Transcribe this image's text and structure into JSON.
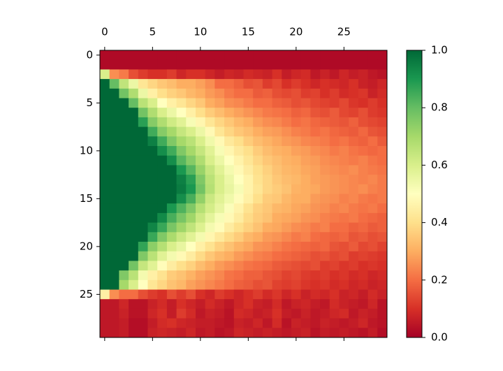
{
  "chart_data": {
    "type": "heatmap",
    "colormap": "RdYlGn",
    "xlim": [
      -0.5,
      29.5
    ],
    "ylim": [
      29.5,
      -0.5
    ],
    "xticks": [
      0,
      5,
      10,
      15,
      20,
      25
    ],
    "yticks": [
      0,
      5,
      10,
      15,
      20,
      25
    ],
    "clim": [
      0,
      1
    ],
    "cticks": [
      {
        "value": 0,
        "label": "0.0"
      },
      0.2,
      0.4,
      0.6,
      0.8,
      {
        "value": 1,
        "label": "1.0"
      }
    ],
    "z": [
      [
        0.02,
        0.02,
        0.02,
        0.02,
        0.02,
        0.02,
        0.02,
        0.02,
        0.02,
        0.02,
        0.02,
        0.02,
        0.02,
        0.02,
        0.02,
        0.02,
        0.02,
        0.02,
        0.02,
        0.02,
        0.02,
        0.02,
        0.02,
        0.02,
        0.02,
        0.02,
        0.02,
        0.02,
        0.02,
        0.02
      ],
      [
        0.02,
        0.02,
        0.02,
        0.02,
        0.02,
        0.02,
        0.02,
        0.02,
        0.02,
        0.02,
        0.02,
        0.02,
        0.02,
        0.02,
        0.02,
        0.02,
        0.02,
        0.02,
        0.02,
        0.02,
        0.02,
        0.02,
        0.02,
        0.02,
        0.02,
        0.02,
        0.02,
        0.02,
        0.02,
        0.02
      ],
      [
        0.6,
        0.25,
        0.22,
        0.15,
        0.12,
        0.1,
        0.1,
        0.12,
        0.08,
        0.1,
        0.1,
        0.08,
        0.06,
        0.08,
        0.07,
        0.09,
        0.08,
        0.07,
        0.1,
        0.06,
        0.08,
        0.09,
        0.05,
        0.07,
        0.05,
        0.08,
        0.06,
        0.07,
        0.05,
        0.04
      ],
      [
        1,
        0.8,
        0.65,
        0.55,
        0.42,
        0.38,
        0.35,
        0.33,
        0.3,
        0.3,
        0.28,
        0.25,
        0.2,
        0.2,
        0.18,
        0.15,
        0.16,
        0.12,
        0.14,
        0.1,
        0.12,
        0.1,
        0.08,
        0.1,
        0.09,
        0.08,
        0.1,
        0.07,
        0.06,
        0.08
      ],
      [
        1,
        1,
        0.78,
        0.68,
        0.55,
        0.45,
        0.4,
        0.37,
        0.35,
        0.32,
        0.3,
        0.27,
        0.25,
        0.22,
        0.2,
        0.2,
        0.17,
        0.18,
        0.15,
        0.14,
        0.15,
        0.12,
        0.13,
        0.1,
        0.12,
        0.09,
        0.1,
        0.11,
        0.07,
        0.09
      ],
      [
        1,
        1,
        1,
        0.8,
        0.66,
        0.6,
        0.5,
        0.45,
        0.42,
        0.38,
        0.35,
        0.3,
        0.28,
        0.25,
        0.24,
        0.22,
        0.2,
        0.2,
        0.18,
        0.17,
        0.15,
        0.16,
        0.14,
        0.13,
        0.12,
        0.14,
        0.11,
        0.1,
        0.12,
        0.1
      ],
      [
        1,
        1,
        1,
        1,
        0.78,
        0.68,
        0.6,
        0.55,
        0.5,
        0.45,
        0.4,
        0.36,
        0.33,
        0.3,
        0.28,
        0.26,
        0.24,
        0.22,
        0.21,
        0.2,
        0.18,
        0.19,
        0.16,
        0.15,
        0.17,
        0.14,
        0.13,
        0.15,
        0.12,
        0.11
      ],
      [
        1,
        1,
        1,
        1,
        0.88,
        0.75,
        0.68,
        0.62,
        0.58,
        0.52,
        0.47,
        0.42,
        0.38,
        0.35,
        0.32,
        0.3,
        0.27,
        0.25,
        0.24,
        0.22,
        0.2,
        0.21,
        0.19,
        0.18,
        0.17,
        0.16,
        0.18,
        0.15,
        0.14,
        0.13
      ],
      [
        1,
        1,
        1,
        1,
        1,
        0.85,
        0.75,
        0.7,
        0.64,
        0.6,
        0.55,
        0.48,
        0.42,
        0.38,
        0.35,
        0.33,
        0.3,
        0.28,
        0.27,
        0.25,
        0.23,
        0.22,
        0.2,
        0.21,
        0.19,
        0.18,
        0.17,
        0.19,
        0.16,
        0.15
      ],
      [
        1,
        1,
        1,
        1,
        1,
        0.95,
        0.85,
        0.76,
        0.7,
        0.66,
        0.6,
        0.54,
        0.48,
        0.43,
        0.4,
        0.36,
        0.33,
        0.31,
        0.29,
        0.27,
        0.26,
        0.24,
        0.23,
        0.22,
        0.2,
        0.21,
        0.19,
        0.18,
        0.2,
        0.17
      ],
      [
        1,
        1,
        1,
        1,
        1,
        1,
        0.92,
        0.85,
        0.76,
        0.7,
        0.64,
        0.58,
        0.52,
        0.47,
        0.43,
        0.4,
        0.36,
        0.33,
        0.31,
        0.3,
        0.28,
        0.27,
        0.25,
        0.24,
        0.22,
        0.23,
        0.21,
        0.2,
        0.19,
        0.2
      ],
      [
        1,
        1,
        1,
        1,
        1,
        1,
        1,
        0.92,
        0.82,
        0.75,
        0.68,
        0.6,
        0.55,
        0.5,
        0.46,
        0.42,
        0.38,
        0.35,
        0.33,
        0.31,
        0.3,
        0.28,
        0.27,
        0.25,
        0.24,
        0.23,
        0.22,
        0.23,
        0.21,
        0.2
      ],
      [
        1,
        1,
        1,
        1,
        1,
        1,
        1,
        1,
        0.9,
        0.82,
        0.72,
        0.64,
        0.58,
        0.53,
        0.48,
        0.44,
        0.4,
        0.37,
        0.34,
        0.32,
        0.31,
        0.29,
        0.28,
        0.26,
        0.25,
        0.24,
        0.25,
        0.23,
        0.22,
        0.21
      ],
      [
        1,
        1,
        1,
        1,
        1,
        1,
        1,
        1,
        0.95,
        0.88,
        0.76,
        0.66,
        0.6,
        0.55,
        0.5,
        0.46,
        0.41,
        0.38,
        0.35,
        0.33,
        0.32,
        0.3,
        0.28,
        0.27,
        0.26,
        0.25,
        0.24,
        0.23,
        0.24,
        0.22
      ],
      [
        1,
        1,
        1,
        1,
        1,
        1,
        1,
        1,
        0.96,
        0.9,
        0.78,
        0.67,
        0.6,
        0.56,
        0.52,
        0.46,
        0.42,
        0.38,
        0.36,
        0.34,
        0.31,
        0.3,
        0.29,
        0.27,
        0.26,
        0.25,
        0.24,
        0.25,
        0.23,
        0.22
      ],
      [
        1,
        1,
        1,
        1,
        1,
        1,
        1,
        1,
        0.92,
        0.84,
        0.73,
        0.63,
        0.58,
        0.54,
        0.49,
        0.45,
        0.4,
        0.36,
        0.35,
        0.32,
        0.3,
        0.3,
        0.27,
        0.26,
        0.25,
        0.23,
        0.24,
        0.22,
        0.21,
        0.22
      ],
      [
        1,
        1,
        1,
        1,
        1,
        1,
        1,
        0.9,
        0.83,
        0.76,
        0.67,
        0.61,
        0.56,
        0.51,
        0.46,
        0.41,
        0.37,
        0.35,
        0.32,
        0.31,
        0.29,
        0.28,
        0.26,
        0.25,
        0.23,
        0.24,
        0.22,
        0.21,
        0.22,
        0.2
      ],
      [
        1,
        1,
        1,
        1,
        1,
        1,
        0.93,
        0.84,
        0.77,
        0.71,
        0.63,
        0.57,
        0.52,
        0.48,
        0.44,
        0.39,
        0.36,
        0.34,
        0.3,
        0.29,
        0.28,
        0.26,
        0.25,
        0.23,
        0.22,
        0.21,
        0.22,
        0.2,
        0.19,
        0.18
      ],
      [
        1,
        1,
        1,
        1,
        1,
        0.94,
        0.86,
        0.77,
        0.71,
        0.65,
        0.59,
        0.53,
        0.49,
        0.44,
        0.4,
        0.37,
        0.34,
        0.3,
        0.29,
        0.27,
        0.25,
        0.24,
        0.22,
        0.23,
        0.2,
        0.2,
        0.18,
        0.19,
        0.17,
        0.18
      ],
      [
        1,
        1,
        1,
        1,
        1,
        0.86,
        0.76,
        0.69,
        0.63,
        0.58,
        0.53,
        0.47,
        0.43,
        0.39,
        0.36,
        0.32,
        0.3,
        0.27,
        0.26,
        0.24,
        0.22,
        0.23,
        0.2,
        0.19,
        0.18,
        0.19,
        0.16,
        0.17,
        0.15,
        0.16
      ],
      [
        1,
        1,
        1,
        1,
        0.87,
        0.74,
        0.67,
        0.6,
        0.56,
        0.5,
        0.45,
        0.41,
        0.37,
        0.34,
        0.31,
        0.29,
        0.26,
        0.25,
        0.23,
        0.21,
        0.2,
        0.19,
        0.18,
        0.19,
        0.16,
        0.15,
        0.17,
        0.14,
        0.15,
        0.13
      ],
      [
        1,
        1,
        1,
        1,
        0.76,
        0.66,
        0.58,
        0.53,
        0.48,
        0.44,
        0.39,
        0.35,
        0.32,
        0.3,
        0.27,
        0.25,
        0.23,
        0.22,
        0.2,
        0.19,
        0.18,
        0.17,
        0.15,
        0.16,
        0.14,
        0.15,
        0.12,
        0.13,
        0.12,
        0.11
      ],
      [
        1,
        1,
        1,
        0.78,
        0.64,
        0.58,
        0.49,
        0.44,
        0.4,
        0.37,
        0.33,
        0.3,
        0.27,
        0.25,
        0.23,
        0.21,
        0.2,
        0.19,
        0.17,
        0.16,
        0.15,
        0.14,
        0.15,
        0.12,
        0.13,
        0.11,
        0.12,
        0.1,
        0.11,
        0.1
      ],
      [
        1,
        1,
        0.76,
        0.66,
        0.53,
        0.45,
        0.41,
        0.36,
        0.34,
        0.31,
        0.28,
        0.26,
        0.24,
        0.21,
        0.2,
        0.18,
        0.18,
        0.16,
        0.15,
        0.13,
        0.14,
        0.12,
        0.11,
        0.12,
        0.1,
        0.11,
        0.09,
        0.1,
        0.08,
        0.09
      ],
      [
        1,
        1,
        0.7,
        0.6,
        0.5,
        0.42,
        0.38,
        0.34,
        0.32,
        0.28,
        0.26,
        0.24,
        0.22,
        0.2,
        0.18,
        0.17,
        0.15,
        0.16,
        0.13,
        0.12,
        0.13,
        0.11,
        0.1,
        0.11,
        0.09,
        0.1,
        0.08,
        0.09,
        0.07,
        0.08
      ],
      [
        0.45,
        0.25,
        0.2,
        0.2,
        0.15,
        0.12,
        0.1,
        0.15,
        0.12,
        0.15,
        0.1,
        0.08,
        0.12,
        0.1,
        0.08,
        0.1,
        0.12,
        0.09,
        0.11,
        0.08,
        0.1,
        0.07,
        0.09,
        0.08,
        0.1,
        0.07,
        0.08,
        0.06,
        0.09,
        0.07
      ],
      [
        0.05,
        0.05,
        0.08,
        0.04,
        0.04,
        0.07,
        0.09,
        0.06,
        0.1,
        0.08,
        0.06,
        0.09,
        0.07,
        0.05,
        0.08,
        0.1,
        0.07,
        0.06,
        0.09,
        0.05,
        0.07,
        0.08,
        0.06,
        0.05,
        0.09,
        0.07,
        0.06,
        0.05,
        0.08,
        0.04
      ],
      [
        0.05,
        0.05,
        0.07,
        0.04,
        0.04,
        0.08,
        0.1,
        0.06,
        0.12,
        0.09,
        0.05,
        0.07,
        0.06,
        0.04,
        0.09,
        0.08,
        0.06,
        0.07,
        0.1,
        0.06,
        0.05,
        0.07,
        0.05,
        0.06,
        0.08,
        0.09,
        0.05,
        0.07,
        0.06,
        0.04
      ],
      [
        0.05,
        0.05,
        0.06,
        0.03,
        0.03,
        0.06,
        0.09,
        0.1,
        0.08,
        0.07,
        0.06,
        0.06,
        0.05,
        0.04,
        0.07,
        0.06,
        0.08,
        0.05,
        0.09,
        0.04,
        0.07,
        0.06,
        0.05,
        0.07,
        0.06,
        0.05,
        0.06,
        0.08,
        0.05,
        0.04
      ],
      [
        0.05,
        0.05,
        0.06,
        0.03,
        0.03,
        0.07,
        0.08,
        0.07,
        0.06,
        0.08,
        0.05,
        0.06,
        0.04,
        0.05,
        0.08,
        0.07,
        0.06,
        0.07,
        0.06,
        0.05,
        0.06,
        0.07,
        0.04,
        0.06,
        0.05,
        0.06,
        0.05,
        0.04,
        0.06,
        0.03
      ]
    ]
  }
}
